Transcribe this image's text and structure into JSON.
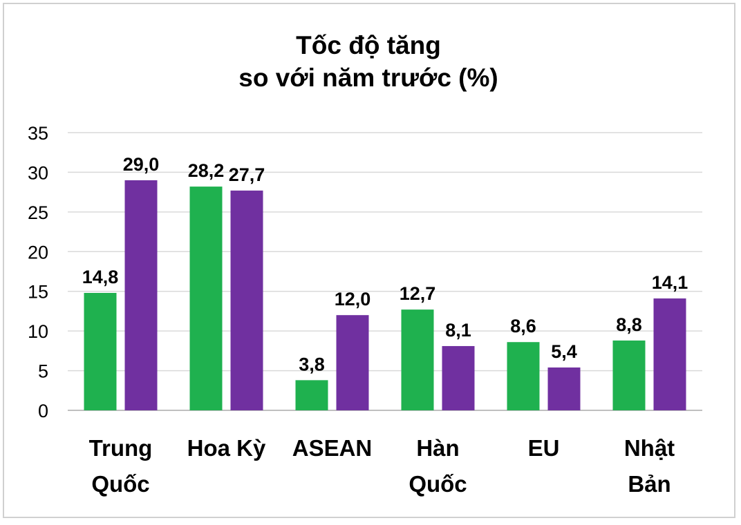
{
  "chart_data": {
    "type": "bar",
    "title_lines": [
      "Tốc độ tăng",
      "so với năm trước (%)"
    ],
    "categories": [
      [
        "Trung",
        "Quốc"
      ],
      [
        "Hoa Kỳ"
      ],
      [
        "ASEAN"
      ],
      [
        "Hàn",
        "Quốc"
      ],
      [
        "EU"
      ],
      [
        "Nhật",
        "Bản"
      ]
    ],
    "series": [
      {
        "color": "#1fb14f",
        "values": [
          14.8,
          28.2,
          3.8,
          12.7,
          8.6,
          8.8
        ],
        "labels": [
          "14,8",
          "28,2",
          "3,8",
          "12,7",
          "8,6",
          "8,8"
        ]
      },
      {
        "color": "#7030a0",
        "values": [
          29.0,
          27.7,
          12.0,
          8.1,
          5.4,
          14.1
        ],
        "labels": [
          "29,0",
          "27,7",
          "12,0",
          "8,1",
          "5,4",
          "14,1"
        ]
      }
    ],
    "yticks": [
      "0",
      "5",
      "10",
      "15",
      "20",
      "25",
      "30",
      "35"
    ],
    "ylim": [
      0,
      35
    ],
    "grid": true,
    "legend": "none"
  }
}
